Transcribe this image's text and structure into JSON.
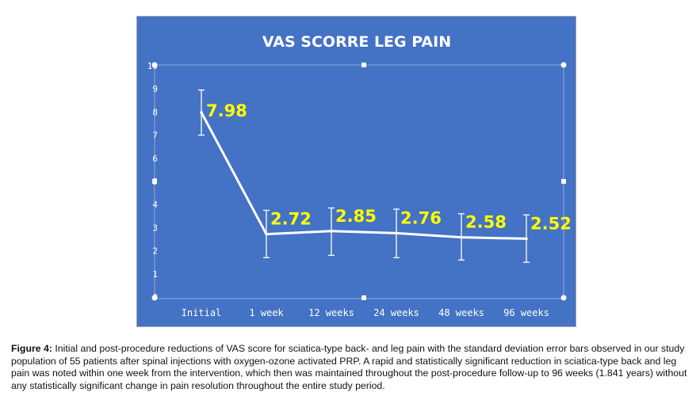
{
  "chart_data": {
    "type": "line",
    "title": "VAS SCORRE LEG PAIN",
    "categories": [
      "Initial",
      "1 week",
      "12 weeks",
      "24 weeks",
      "48 weeks",
      "96 weeks"
    ],
    "series": [
      {
        "values": [
          7.98,
          2.72,
          2.85,
          2.76,
          2.58,
          2.52
        ],
        "error_low": [
          7.0,
          1.7,
          1.8,
          1.7,
          1.6,
          1.5
        ],
        "error_high": [
          8.95,
          3.75,
          3.85,
          3.8,
          3.6,
          3.55
        ]
      }
    ],
    "data_labels": [
      "7.98",
      "2.72",
      "2.85",
      "2.76",
      "2.58",
      "2.52"
    ],
    "yticks": [
      "0",
      "1",
      "2",
      "3",
      "4",
      "5",
      "6",
      "7",
      "8",
      "9",
      "10"
    ],
    "ylim": [
      0,
      10
    ],
    "xlabel": "",
    "ylabel": "",
    "grid": false,
    "legend": "none",
    "colors": {
      "background": "#4472c4",
      "line": "#ffffff",
      "data_label": "#ffff00",
      "title": "#ffffff",
      "axis_text": "#ffffff"
    }
  },
  "caption": {
    "label": "Figure 4:",
    "text": " Initial and post-procedure reductions of VAS score for sciatica-type back- and leg pain with the standard deviation error bars observed in our study population of 55 patients after spinal injections with oxygen-ozone activated PRP. A rapid and statistically significant reduction in sciatica-type back and leg pain was noted within one week from the intervention, which then was maintained throughout the post-procedure follow-up to 96 weeks (1.841 years) without any statistically significant change in pain resolution throughout the entire study period."
  }
}
